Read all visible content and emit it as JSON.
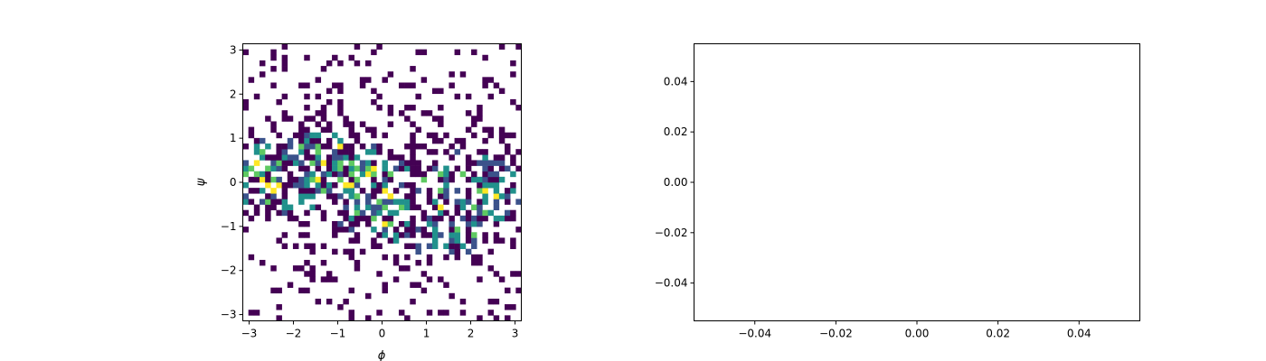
{
  "chart_data": [
    {
      "type": "heatmap",
      "xlabel": "ϕ",
      "ylabel": "ψ",
      "xlim": [
        -3.1416,
        3.1416
      ],
      "ylim": [
        -3.1416,
        3.1416
      ],
      "x_ticks": [
        -3,
        -2,
        -1,
        0,
        1,
        2,
        3
      ],
      "y_ticks": [
        -3,
        -2,
        -1,
        0,
        1,
        2,
        3
      ],
      "x_tick_labels": [
        "−3",
        "−2",
        "−1",
        "0",
        "1",
        "2",
        "3"
      ],
      "y_tick_labels": [
        "−3",
        "−2",
        "−1",
        "0",
        "1",
        "2",
        "3"
      ],
      "bins": [
        50,
        50
      ],
      "colormap": "viridis",
      "empty_bins": "white",
      "grid": false,
      "dense_regions": [
        {
          "phi": -1.2,
          "psi": 0.4
        },
        {
          "phi": -2.6,
          "psi": 0.1
        },
        {
          "phi": 0.0,
          "psi": -0.4
        },
        {
          "phi": 1.4,
          "psi": -0.8
        },
        {
          "phi": 2.3,
          "psi": -0.1
        }
      ]
    },
    {
      "type": "line",
      "xlim": [
        -0.055,
        0.055
      ],
      "ylim": [
        -0.055,
        0.055
      ],
      "x_ticks": [
        -0.04,
        -0.02,
        0.0,
        0.02,
        0.04
      ],
      "y_ticks": [
        -0.04,
        -0.02,
        0.0,
        0.02,
        0.04
      ],
      "x_tick_labels": [
        "−0.04",
        "−0.02",
        "0.00",
        "0.02",
        "0.04"
      ],
      "y_tick_labels": [
        "−0.04",
        "−0.02",
        "0.00",
        "0.02",
        "0.04"
      ],
      "series": [],
      "grid": false
    }
  ]
}
